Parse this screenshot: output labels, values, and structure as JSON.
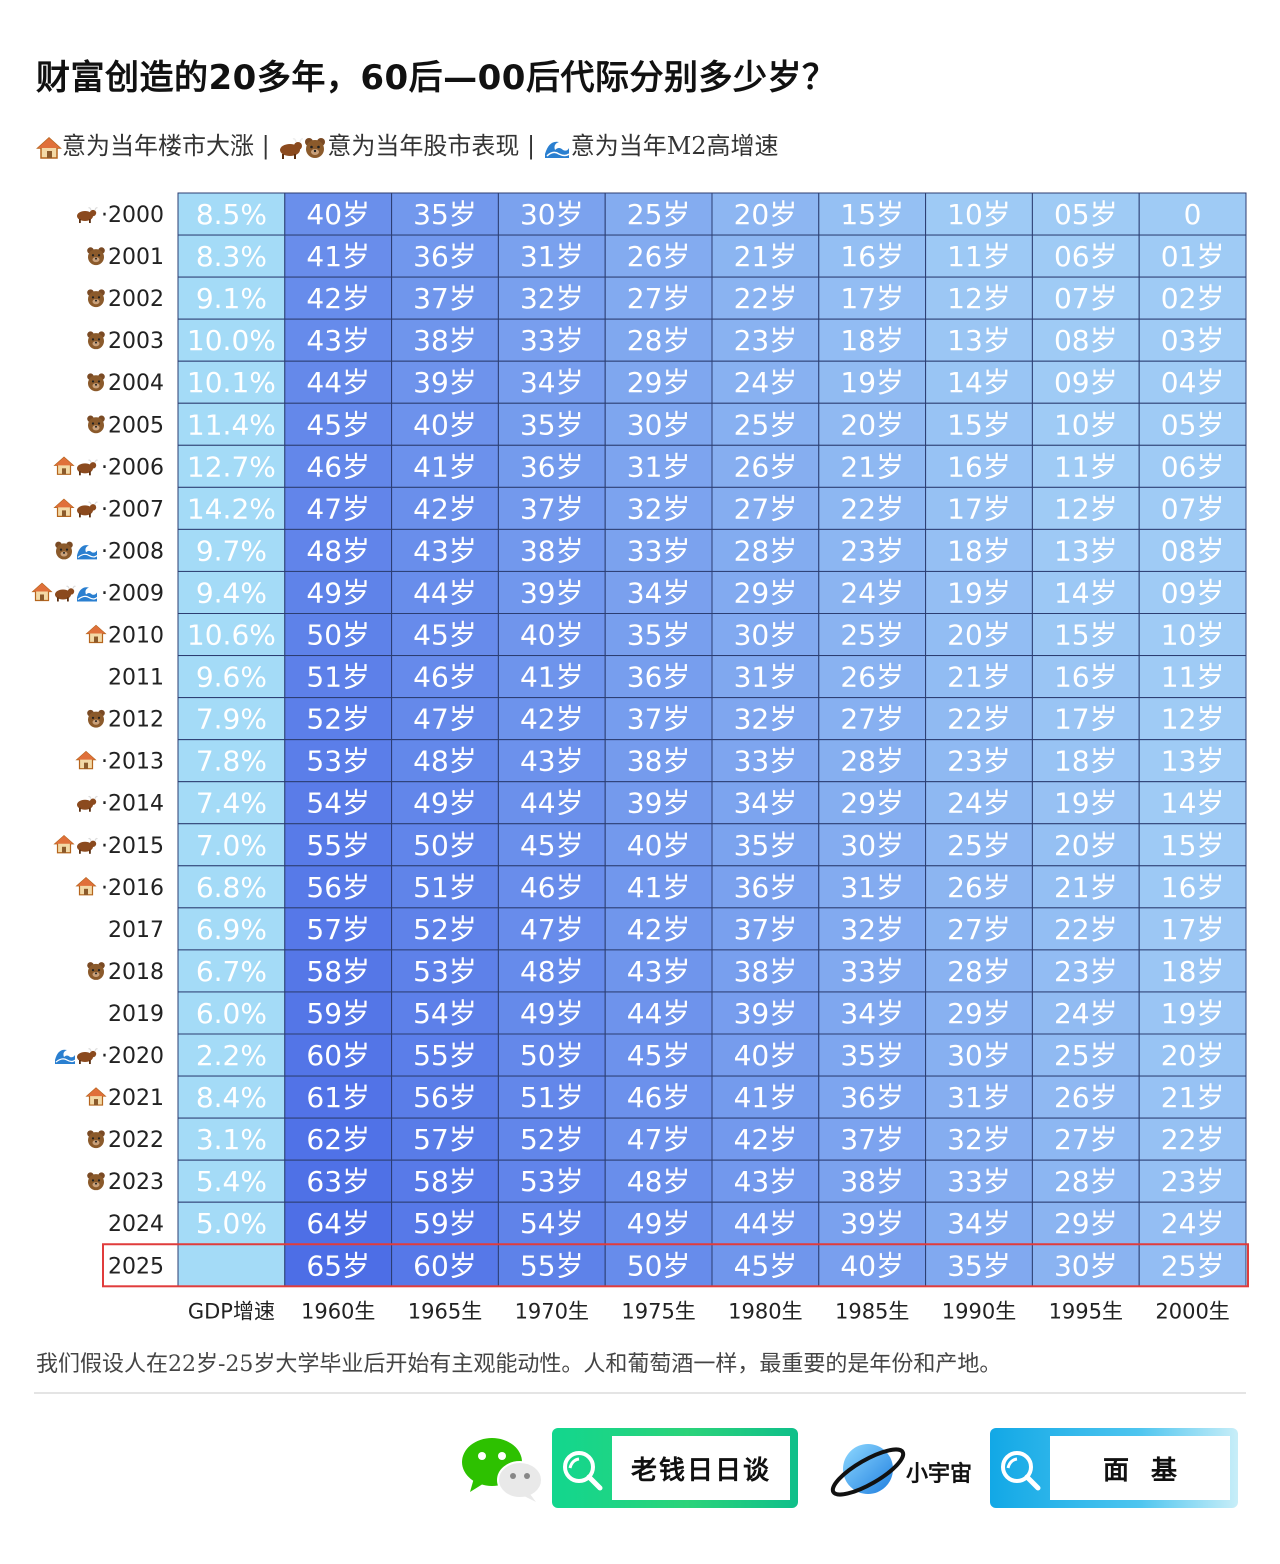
{
  "title": "财富创造的20多年，60后—00后代际分别多少岁？",
  "subtitle": {
    "house_text": "意为当年楼市大涨 |",
    "stock_text": "意为当年股市表现 |",
    "m2_text": "意为当年M2高增速"
  },
  "icons": {
    "house": "house-icon",
    "bull": "bull-icon",
    "bear": "bear-icon",
    "wave": "wave-icon"
  },
  "colors": {
    "gdp_column": "#a4dbf7",
    "age_dark": "#4d6ee6",
    "age_light": "#9fcbf5",
    "grid_line": "#2c3e72",
    "highlight_border": "#e03c3c",
    "cell_text": "#ffffff"
  },
  "chart_data": {
    "type": "table",
    "column_headers": [
      "GDP增速",
      "1960生",
      "1965生",
      "1970生",
      "1975生",
      "1980生",
      "1985生",
      "1990生",
      "1995生",
      "2000生"
    ],
    "rows": [
      {
        "year": "2000",
        "icons": [
          "bull"
        ],
        "dot": true,
        "gdp": "8.5%",
        "ages": [
          "40岁",
          "35岁",
          "30岁",
          "25岁",
          "20岁",
          "15岁",
          "10岁",
          "05岁",
          "0"
        ]
      },
      {
        "year": "2001",
        "icons": [
          "bear"
        ],
        "dot": false,
        "gdp": "8.3%",
        "ages": [
          "41岁",
          "36岁",
          "31岁",
          "26岁",
          "21岁",
          "16岁",
          "11岁",
          "06岁",
          "01岁"
        ]
      },
      {
        "year": "2002",
        "icons": [
          "bear"
        ],
        "dot": false,
        "gdp": "9.1%",
        "ages": [
          "42岁",
          "37岁",
          "32岁",
          "27岁",
          "22岁",
          "17岁",
          "12岁",
          "07岁",
          "02岁"
        ]
      },
      {
        "year": "2003",
        "icons": [
          "bear"
        ],
        "dot": false,
        "gdp": "10.0%",
        "ages": [
          "43岁",
          "38岁",
          "33岁",
          "28岁",
          "23岁",
          "18岁",
          "13岁",
          "08岁",
          "03岁"
        ]
      },
      {
        "year": "2004",
        "icons": [
          "bear"
        ],
        "dot": false,
        "gdp": "10.1%",
        "ages": [
          "44岁",
          "39岁",
          "34岁",
          "29岁",
          "24岁",
          "19岁",
          "14岁",
          "09岁",
          "04岁"
        ]
      },
      {
        "year": "2005",
        "icons": [
          "bear"
        ],
        "dot": false,
        "gdp": "11.4%",
        "ages": [
          "45岁",
          "40岁",
          "35岁",
          "30岁",
          "25岁",
          "20岁",
          "15岁",
          "10岁",
          "05岁"
        ]
      },
      {
        "year": "2006",
        "icons": [
          "house",
          "bull"
        ],
        "dot": true,
        "gdp": "12.7%",
        "ages": [
          "46岁",
          "41岁",
          "36岁",
          "31岁",
          "26岁",
          "21岁",
          "16岁",
          "11岁",
          "06岁"
        ]
      },
      {
        "year": "2007",
        "icons": [
          "house",
          "bull"
        ],
        "dot": true,
        "gdp": "14.2%",
        "ages": [
          "47岁",
          "42岁",
          "37岁",
          "32岁",
          "27岁",
          "22岁",
          "17岁",
          "12岁",
          "07岁"
        ]
      },
      {
        "year": "2008",
        "icons": [
          "bear",
          "wave"
        ],
        "dot": true,
        "gdp": "9.7%",
        "ages": [
          "48岁",
          "43岁",
          "38岁",
          "33岁",
          "28岁",
          "23岁",
          "18岁",
          "13岁",
          "08岁"
        ]
      },
      {
        "year": "2009",
        "icons": [
          "house",
          "bull",
          "wave"
        ],
        "dot": true,
        "gdp": "9.4%",
        "ages": [
          "49岁",
          "44岁",
          "39岁",
          "34岁",
          "29岁",
          "24岁",
          "19岁",
          "14岁",
          "09岁"
        ]
      },
      {
        "year": "2010",
        "icons": [
          "house"
        ],
        "dot": false,
        "gdp": "10.6%",
        "ages": [
          "50岁",
          "45岁",
          "40岁",
          "35岁",
          "30岁",
          "25岁",
          "20岁",
          "15岁",
          "10岁"
        ]
      },
      {
        "year": "2011",
        "icons": [],
        "dot": false,
        "gdp": "9.6%",
        "ages": [
          "51岁",
          "46岁",
          "41岁",
          "36岁",
          "31岁",
          "26岁",
          "21岁",
          "16岁",
          "11岁"
        ]
      },
      {
        "year": "2012",
        "icons": [
          "bear"
        ],
        "dot": false,
        "gdp": "7.9%",
        "ages": [
          "52岁",
          "47岁",
          "42岁",
          "37岁",
          "32岁",
          "27岁",
          "22岁",
          "17岁",
          "12岁"
        ]
      },
      {
        "year": "2013",
        "icons": [
          "house"
        ],
        "dot": true,
        "gdp": "7.8%",
        "ages": [
          "53岁",
          "48岁",
          "43岁",
          "38岁",
          "33岁",
          "28岁",
          "23岁",
          "18岁",
          "13岁"
        ]
      },
      {
        "year": "2014",
        "icons": [
          "bull"
        ],
        "dot": true,
        "gdp": "7.4%",
        "ages": [
          "54岁",
          "49岁",
          "44岁",
          "39岁",
          "34岁",
          "29岁",
          "24岁",
          "19岁",
          "14岁"
        ]
      },
      {
        "year": "2015",
        "icons": [
          "house",
          "bull"
        ],
        "dot": true,
        "gdp": "7.0%",
        "ages": [
          "55岁",
          "50岁",
          "45岁",
          "40岁",
          "35岁",
          "30岁",
          "25岁",
          "20岁",
          "15岁"
        ]
      },
      {
        "year": "2016",
        "icons": [
          "house"
        ],
        "dot": true,
        "gdp": "6.8%",
        "ages": [
          "56岁",
          "51岁",
          "46岁",
          "41岁",
          "36岁",
          "31岁",
          "26岁",
          "21岁",
          "16岁"
        ]
      },
      {
        "year": "2017",
        "icons": [],
        "dot": false,
        "gdp": "6.9%",
        "ages": [
          "57岁",
          "52岁",
          "47岁",
          "42岁",
          "37岁",
          "32岁",
          "27岁",
          "22岁",
          "17岁"
        ]
      },
      {
        "year": "2018",
        "icons": [
          "bear"
        ],
        "dot": false,
        "gdp": "6.7%",
        "ages": [
          "58岁",
          "53岁",
          "48岁",
          "43岁",
          "38岁",
          "33岁",
          "28岁",
          "23岁",
          "18岁"
        ]
      },
      {
        "year": "2019",
        "icons": [],
        "dot": false,
        "gdp": "6.0%",
        "ages": [
          "59岁",
          "54岁",
          "49岁",
          "44岁",
          "39岁",
          "34岁",
          "29岁",
          "24岁",
          "19岁"
        ]
      },
      {
        "year": "2020",
        "icons": [
          "wave",
          "bull"
        ],
        "dot": true,
        "gdp": "2.2%",
        "ages": [
          "60岁",
          "55岁",
          "50岁",
          "45岁",
          "40岁",
          "35岁",
          "30岁",
          "25岁",
          "20岁"
        ]
      },
      {
        "year": "2021",
        "icons": [
          "house"
        ],
        "dot": false,
        "gdp": "8.4%",
        "ages": [
          "61岁",
          "56岁",
          "51岁",
          "46岁",
          "41岁",
          "36岁",
          "31岁",
          "26岁",
          "21岁"
        ]
      },
      {
        "year": "2022",
        "icons": [
          "bear"
        ],
        "dot": false,
        "gdp": "3.1%",
        "ages": [
          "62岁",
          "57岁",
          "52岁",
          "47岁",
          "42岁",
          "37岁",
          "32岁",
          "27岁",
          "22岁"
        ]
      },
      {
        "year": "2023",
        "icons": [
          "bear"
        ],
        "dot": false,
        "gdp": "5.4%",
        "ages": [
          "63岁",
          "58岁",
          "53岁",
          "48岁",
          "43岁",
          "38岁",
          "33岁",
          "28岁",
          "23岁"
        ]
      },
      {
        "year": "2024",
        "icons": [],
        "dot": false,
        "gdp": "5.0%",
        "ages": [
          "64岁",
          "59岁",
          "54岁",
          "49岁",
          "44岁",
          "39岁",
          "34岁",
          "29岁",
          "24岁"
        ]
      },
      {
        "year": "2025",
        "icons": [],
        "dot": false,
        "gdp": "",
        "highlight": true,
        "ages": [
          "65岁",
          "60岁",
          "55岁",
          "50岁",
          "45岁",
          "40岁",
          "35岁",
          "30岁",
          "25岁"
        ]
      }
    ]
  },
  "footnote": "我们假设人在22岁-25岁大学毕业后开始有主观能动性。人和葡萄酒一样，最重要的是年份和产地。",
  "footer": {
    "search1_text": "老钱日日谈",
    "planet_label": "小宇宙",
    "search2_text": "面基"
  }
}
